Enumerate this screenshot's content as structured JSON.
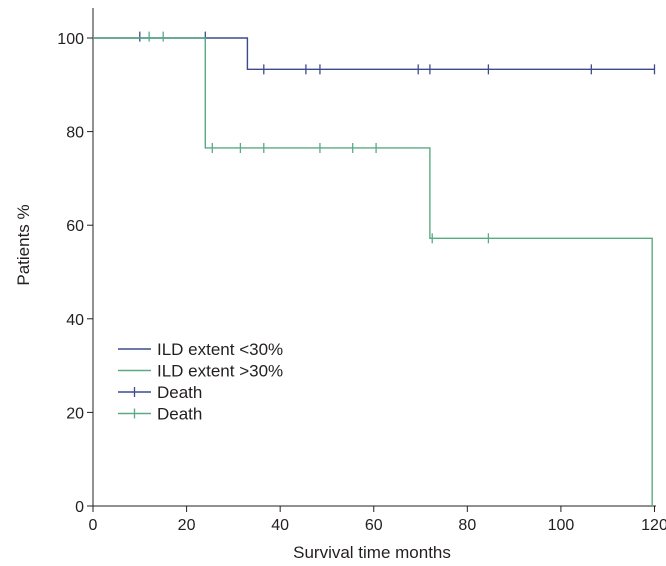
{
  "chart_data": {
    "type": "line",
    "subtype": "kaplan-meier step curve",
    "title": "",
    "xlabel": "Survival time months",
    "ylabel": "Patients %",
    "xlim": [
      0,
      120
    ],
    "ylim": [
      0,
      100
    ],
    "xticks": [
      0,
      20,
      40,
      60,
      80,
      100,
      120
    ],
    "yticks": [
      0,
      20,
      40,
      60,
      80,
      100
    ],
    "grid": false,
    "legend_position": "bottom-left",
    "series": [
      {
        "name": "ILD extent <30%",
        "color": "#3f4a8c",
        "steps": [
          [
            0,
            100
          ],
          [
            33,
            100
          ],
          [
            33,
            93.3
          ],
          [
            120,
            93.3
          ]
        ],
        "censor_marker_legend": "Death",
        "censored": [
          [
            10,
            100.3
          ],
          [
            24,
            100.3
          ],
          [
            36.5,
            93.3
          ],
          [
            45.5,
            93.3
          ],
          [
            48.5,
            93.3
          ],
          [
            69.5,
            93.3
          ],
          [
            72,
            93.3
          ],
          [
            84.5,
            93.3
          ],
          [
            106.5,
            93.3
          ],
          [
            120,
            93.3
          ]
        ]
      },
      {
        "name": "ILD extent >30%",
        "color": "#5aab84",
        "steps": [
          [
            0,
            100
          ],
          [
            24,
            100
          ],
          [
            24,
            76.5
          ],
          [
            72,
            76.5
          ],
          [
            72,
            57.2
          ],
          [
            119.5,
            57.2
          ],
          [
            119.5,
            0
          ]
        ],
        "censor_marker_legend": "Death",
        "censored": [
          [
            12,
            100.3
          ],
          [
            15,
            100.3
          ],
          [
            25.5,
            76.5
          ],
          [
            31.5,
            76.5
          ],
          [
            36.5,
            76.5
          ],
          [
            48.5,
            76.5
          ],
          [
            55.5,
            76.5
          ],
          [
            60.5,
            76.5
          ],
          [
            72.5,
            57.2
          ],
          [
            84.5,
            57.2
          ]
        ]
      }
    ],
    "legend": [
      "ILD extent <30%",
      "ILD extent >30%",
      "Death",
      "Death"
    ]
  }
}
